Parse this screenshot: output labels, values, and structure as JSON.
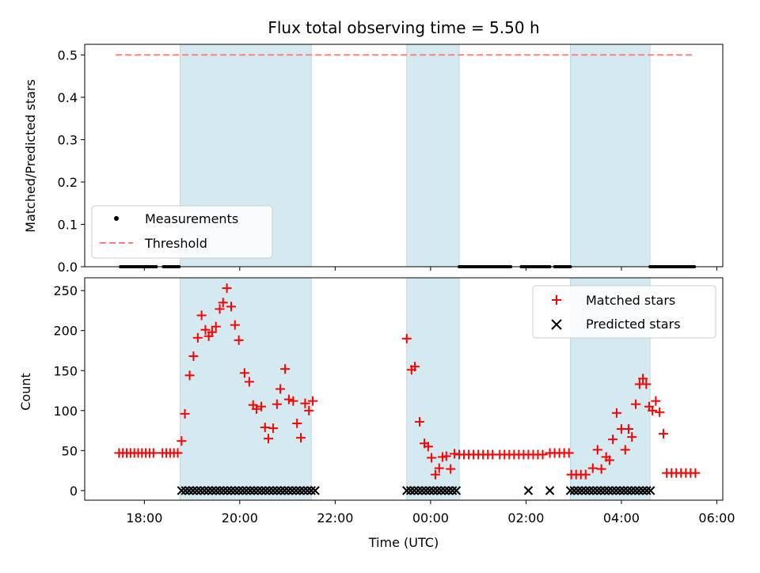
{
  "chart_data": [
    {
      "type": "scatter",
      "title": "Flux total observing time = 5.50 h",
      "xlabel": "",
      "ylabel": "Matched/Predicted stars",
      "xlim": [
        16.75,
        30.125
      ],
      "ylim": [
        0,
        0.525
      ],
      "yticks": [
        "0.0",
        "0.1",
        "0.2",
        "0.3",
        "0.4",
        "0.5"
      ],
      "ytick_values": [
        0,
        0.1,
        0.2,
        0.3,
        0.4,
        0.5
      ],
      "threshold": {
        "value": 0.5,
        "x_range": [
          17.4,
          29.5
        ],
        "color": "#ff7f7f"
      },
      "shaded_intervals": [
        [
          18.75,
          21.5
        ],
        [
          23.5,
          24.6
        ],
        [
          26.93,
          28.6
        ]
      ],
      "shade_color": "#d4eaf0",
      "measurement_segments": [
        [
          17.5,
          18.25
        ],
        [
          18.4,
          18.75
        ],
        [
          24.6,
          25.7
        ],
        [
          25.9,
          26.5
        ],
        [
          26.6,
          26.93
        ],
        [
          28.6,
          29.55
        ]
      ],
      "legend": {
        "position": "lower-left",
        "entries": [
          "Measurements",
          "Threshold"
        ]
      }
    },
    {
      "type": "scatter",
      "title": "",
      "xlabel": "Time (UTC)",
      "ylabel": "Count",
      "xlim": [
        16.75,
        30.125
      ],
      "ylim": [
        -12,
        266
      ],
      "xticks": [
        "18:00",
        "20:00",
        "22:00",
        "00:00",
        "02:00",
        "04:00",
        "06:00"
      ],
      "xtick_values": [
        18,
        20,
        22,
        24,
        26,
        28,
        30
      ],
      "yticks": [
        "0",
        "50",
        "100",
        "150",
        "200",
        "250"
      ],
      "ytick_values": [
        0,
        50,
        100,
        150,
        200,
        250
      ],
      "shaded_intervals": [
        [
          18.75,
          21.5
        ],
        [
          23.5,
          24.6
        ],
        [
          26.93,
          28.6
        ]
      ],
      "shade_color": "#d4eaf0",
      "legend": {
        "position": "top-right",
        "entries": [
          "Matched stars",
          "Predicted stars"
        ]
      },
      "series": [
        {
          "name": "Matched stars",
          "marker": "+",
          "color": "#ff0000",
          "points": [
            [
              17.47,
              47
            ],
            [
              17.55,
              47
            ],
            [
              17.63,
              47
            ],
            [
              17.71,
              47
            ],
            [
              17.79,
              47
            ],
            [
              17.87,
              47
            ],
            [
              17.95,
              47
            ],
            [
              18.03,
              47
            ],
            [
              18.11,
              47
            ],
            [
              18.19,
              47
            ],
            [
              18.38,
              47
            ],
            [
              18.46,
              47
            ],
            [
              18.54,
              47
            ],
            [
              18.62,
              47
            ],
            [
              18.7,
              47
            ],
            [
              18.78,
              62
            ],
            [
              18.85,
              96
            ],
            [
              18.95,
              144
            ],
            [
              19.03,
              168
            ],
            [
              19.12,
              191
            ],
            [
              19.2,
              219
            ],
            [
              19.28,
              201
            ],
            [
              19.35,
              193
            ],
            [
              19.42,
              198
            ],
            [
              19.5,
              205
            ],
            [
              19.58,
              227
            ],
            [
              19.65,
              235
            ],
            [
              19.73,
              253
            ],
            [
              19.82,
              230
            ],
            [
              19.9,
              207
            ],
            [
              19.98,
              188
            ],
            [
              20.1,
              147
            ],
            [
              20.2,
              136
            ],
            [
              20.28,
              107
            ],
            [
              20.35,
              102
            ],
            [
              20.45,
              105
            ],
            [
              20.53,
              79
            ],
            [
              20.6,
              65
            ],
            [
              20.7,
              78
            ],
            [
              20.78,
              108
            ],
            [
              20.85,
              127
            ],
            [
              20.95,
              152
            ],
            [
              21.03,
              114
            ],
            [
              21.12,
              112
            ],
            [
              21.2,
              84
            ],
            [
              21.28,
              66
            ],
            [
              21.37,
              109
            ],
            [
              21.45,
              100
            ],
            [
              21.53,
              112
            ],
            [
              23.5,
              190
            ],
            [
              23.6,
              151
            ],
            [
              23.67,
              155
            ],
            [
              23.77,
              86
            ],
            [
              23.87,
              59
            ],
            [
              23.95,
              55
            ],
            [
              24.02,
              41
            ],
            [
              24.1,
              20
            ],
            [
              24.18,
              28
            ],
            [
              24.25,
              42
            ],
            [
              24.33,
              43
            ],
            [
              24.42,
              27
            ],
            [
              24.5,
              46
            ],
            [
              24.6,
              45
            ],
            [
              24.7,
              45
            ],
            [
              24.8,
              45
            ],
            [
              24.9,
              45
            ],
            [
              25,
              45
            ],
            [
              25.1,
              45
            ],
            [
              25.2,
              45
            ],
            [
              25.3,
              45
            ],
            [
              25.45,
              45
            ],
            [
              25.55,
              45
            ],
            [
              25.65,
              45
            ],
            [
              25.75,
              45
            ],
            [
              25.85,
              45
            ],
            [
              25.95,
              45
            ],
            [
              26.05,
              45
            ],
            [
              26.15,
              45
            ],
            [
              26.25,
              45
            ],
            [
              26.35,
              45
            ],
            [
              26.5,
              47
            ],
            [
              26.6,
              47
            ],
            [
              26.7,
              47
            ],
            [
              26.8,
              47
            ],
            [
              26.9,
              47
            ],
            [
              26.95,
              20
            ],
            [
              27.05,
              20
            ],
            [
              27.15,
              20
            ],
            [
              27.25,
              20
            ],
            [
              27.4,
              28
            ],
            [
              27.5,
              51
            ],
            [
              27.58,
              27
            ],
            [
              27.68,
              42
            ],
            [
              27.75,
              38
            ],
            [
              27.82,
              64
            ],
            [
              27.9,
              97
            ],
            [
              28.0,
              77
            ],
            [
              28.08,
              51
            ],
            [
              28.15,
              77
            ],
            [
              28.22,
              67
            ],
            [
              28.3,
              108
            ],
            [
              28.38,
              133
            ],
            [
              28.45,
              140
            ],
            [
              28.52,
              133
            ],
            [
              28.58,
              105
            ],
            [
              28.65,
              100
            ],
            [
              28.72,
              112
            ],
            [
              28.8,
              98
            ],
            [
              28.88,
              71
            ],
            [
              28.95,
              22
            ],
            [
              29.05,
              22
            ],
            [
              29.15,
              22
            ],
            [
              29.25,
              22
            ],
            [
              29.35,
              22
            ],
            [
              29.45,
              22
            ],
            [
              29.55,
              22
            ]
          ]
        },
        {
          "name": "Predicted stars",
          "marker": "x",
          "color": "#000000",
          "segments": [
            [
              18.78,
              21.58
            ],
            [
              23.5,
              24.6
            ],
            [
              26.93,
              28.65
            ]
          ],
          "step": 0.08,
          "isolated": [
            26.05,
            26.5
          ],
          "value": 0
        }
      ]
    }
  ]
}
